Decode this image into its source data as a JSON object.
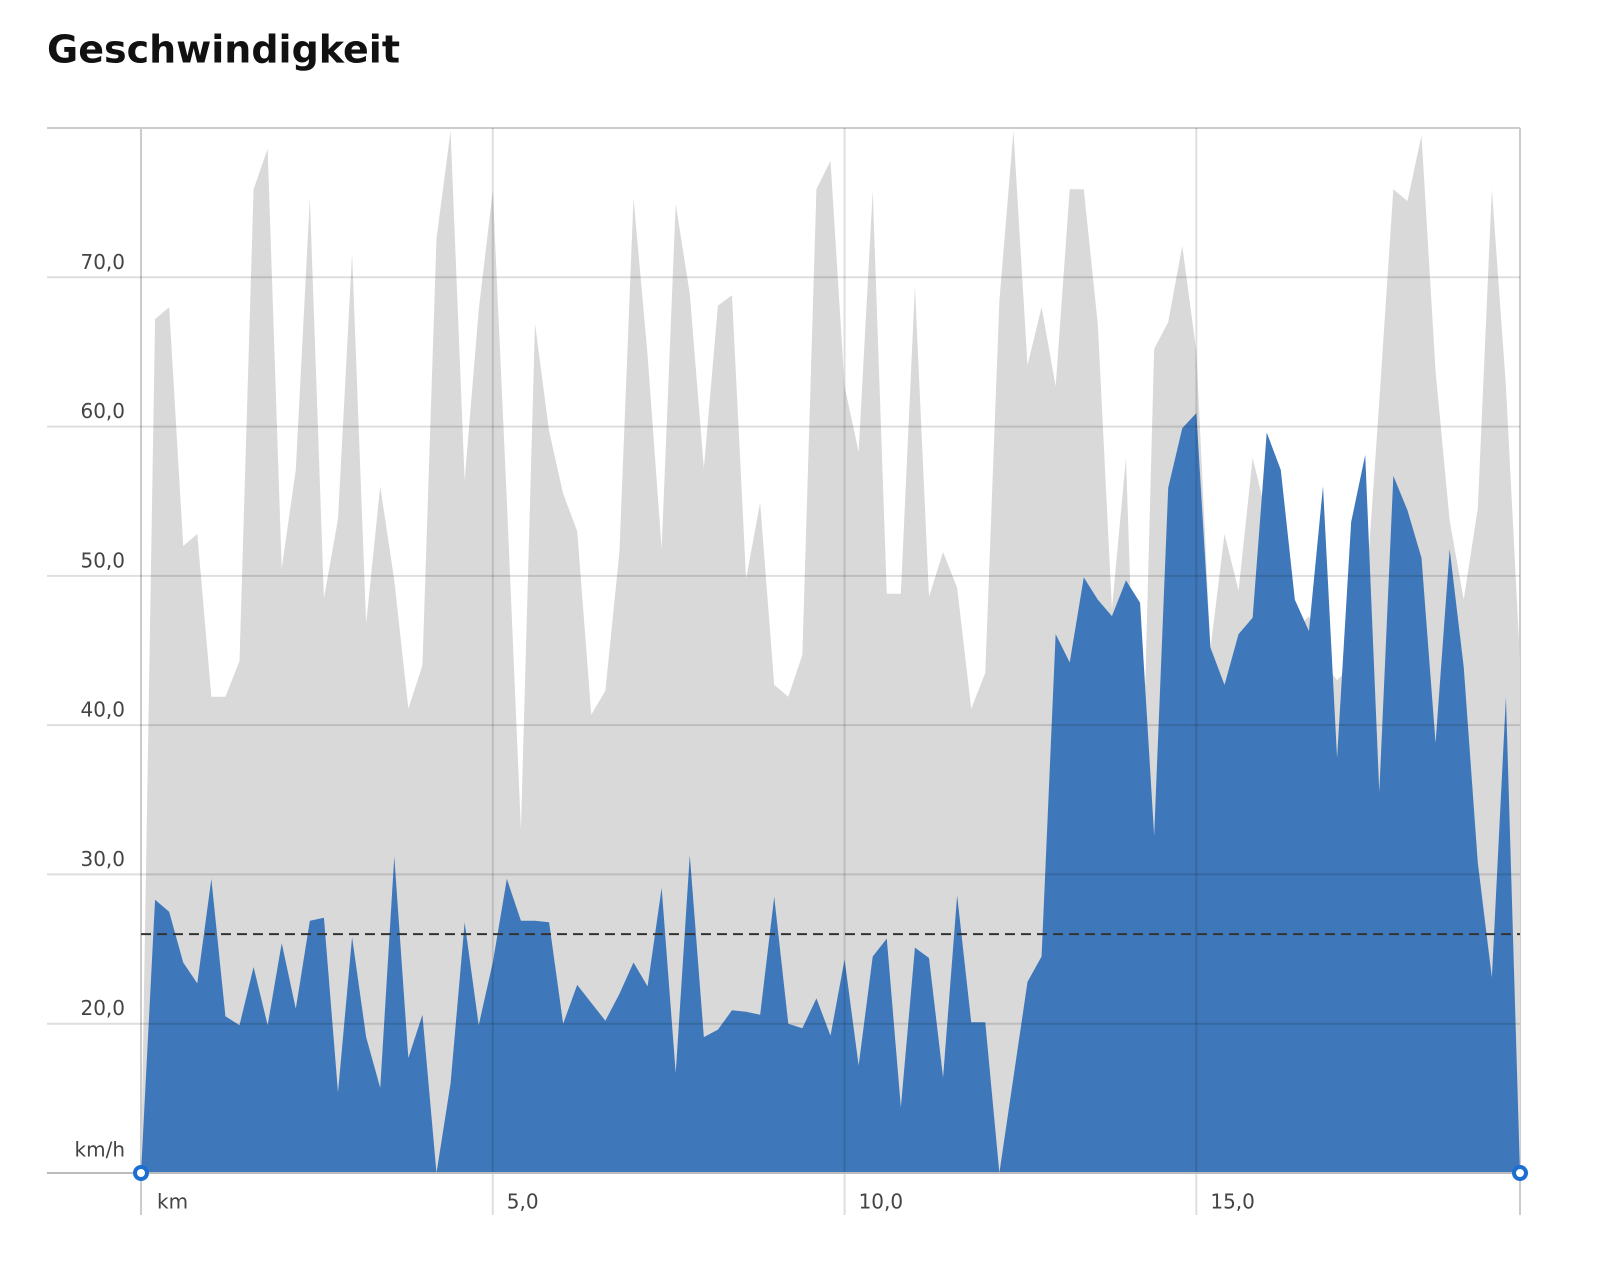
{
  "chart_data": {
    "type": "area",
    "title": "Geschwindigkeit",
    "y_unit": "km/h",
    "x_unit": "km",
    "x": [
      0,
      0.2,
      0.4,
      0.6,
      0.8,
      1,
      1.2,
      1.4,
      1.6,
      1.8,
      2,
      2.2,
      2.4,
      2.6,
      2.8,
      3,
      3.2,
      3.4,
      3.6,
      3.8,
      4,
      4.2,
      4.4,
      4.6,
      4.8,
      5,
      5.2,
      5.4,
      5.6,
      5.8,
      6,
      6.2,
      6.4,
      6.6,
      6.8,
      7,
      7.2,
      7.4,
      7.6,
      7.8,
      8,
      8.2,
      8.4,
      8.6,
      8.8,
      9,
      9.2,
      9.4,
      9.6,
      9.8,
      10,
      10.2,
      10.4,
      10.6,
      10.8,
      11,
      11.2,
      11.4,
      11.6,
      11.8,
      12,
      12.2,
      12.4,
      12.6,
      12.8,
      13,
      13.2,
      13.4,
      13.6,
      13.8,
      14,
      14.2,
      14.4,
      14.6,
      14.8,
      15,
      15.2,
      15.4,
      15.6,
      15.8,
      16,
      16.2,
      16.4,
      16.6,
      16.8,
      17,
      17.2,
      17.4,
      17.6,
      17.8,
      18,
      18.2,
      18.4,
      18.6,
      18.8,
      19,
      19.2,
      19.4,
      19.6
    ],
    "series": [
      {
        "color": "#d9d9d9",
        "values": [
          10,
          67.2,
          68.0,
          52.0,
          52.8,
          41.9,
          41.9,
          44.3,
          75.9,
          78.6,
          50.5,
          57.1,
          75.3,
          48.5,
          53.8,
          71.6,
          46.8,
          56.0,
          49.7,
          41.1,
          44.0,
          72.6,
          79.8,
          56.4,
          67.8,
          75.8,
          55.0,
          33.0,
          66.9,
          59.7,
          55.5,
          53.0,
          40.7,
          42.3,
          51.6,
          75.3,
          64.8,
          51.8,
          74.9,
          68.9,
          57.2,
          68.1,
          68.8,
          49.8,
          54.9,
          42.7,
          41.9,
          44.7,
          75.9,
          77.8,
          62.7,
          58.3,
          75.8,
          48.8,
          48.8,
          69.4,
          48.6,
          51.6,
          49.2,
          41.1,
          43.5,
          68.4,
          79.8,
          64.1,
          68.0,
          62.7,
          75.9,
          75.9,
          66.8,
          47.8,
          57.9,
          29.6,
          65.2,
          67.0,
          72.1,
          65.0,
          45.1,
          52.8,
          49.0,
          57.9,
          54.0,
          47.7,
          46.3,
          47.3,
          44.3,
          43.0,
          44.0,
          48.0,
          61.7,
          75.9,
          75.1,
          79.5,
          63.7,
          53.7,
          48.4,
          54.5,
          75.9,
          62.7,
          44.3
        ]
      },
      {
        "color": "#3f78ba",
        "values": [
          10,
          28.3,
          27.5,
          24.1,
          22.7,
          29.7,
          20.5,
          19.9,
          23.8,
          19.9,
          25.4,
          21.0,
          26.9,
          27.1,
          15.4,
          25.8,
          19.1,
          15.7,
          31.2,
          17.7,
          20.6,
          10.0,
          16.0,
          26.8,
          19.9,
          24.1,
          29.7,
          26.9,
          26.9,
          26.8,
          20.0,
          22.6,
          21.4,
          20.2,
          22.0,
          24.1,
          22.5,
          29.1,
          16.7,
          31.3,
          19.1,
          19.6,
          20.9,
          20.8,
          20.6,
          28.5,
          20.0,
          19.7,
          21.7,
          19.2,
          24.3,
          17.2,
          24.5,
          25.7,
          14.4,
          25.1,
          24.4,
          16.4,
          28.6,
          20.1,
          20.1,
          10.0,
          16.4,
          22.8,
          24.5,
          46.1,
          44.2,
          49.9,
          48.4,
          47.3,
          49.7,
          48.2,
          32.6,
          55.9,
          59.9,
          60.9,
          45.2,
          42.7,
          46.1,
          47.2,
          59.6,
          57.1,
          48.4,
          46.3,
          56.0,
          37.8,
          53.6,
          58.1,
          35.5,
          56.7,
          54.4,
          51.2,
          38.8,
          51.8,
          43.9,
          30.8,
          23.1,
          41.9,
          10
        ]
      }
    ],
    "reference_line": 26,
    "xlim": [
      0,
      19.6
    ],
    "ylim": [
      10,
      80
    ],
    "xticks": [
      {
        "value": 5,
        "label": "5,0"
      },
      {
        "value": 10,
        "label": "10,0"
      },
      {
        "value": 15,
        "label": "15,0"
      }
    ],
    "yticks": [
      {
        "value": 20,
        "label": "20,0"
      },
      {
        "value": 30,
        "label": "30,0"
      },
      {
        "value": 40,
        "label": "40,0"
      },
      {
        "value": 50,
        "label": "50,0"
      },
      {
        "value": 60,
        "label": "60,0"
      },
      {
        "value": 70,
        "label": "70,0"
      }
    ],
    "grid": true
  }
}
